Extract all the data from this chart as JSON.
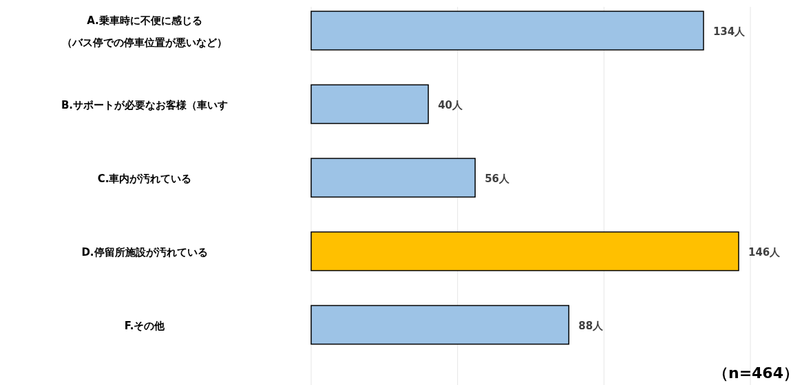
{
  "chart_data": {
    "type": "bar",
    "orientation": "horizontal",
    "categories": [
      "A.乗車時に不便に感じる（バス停での停車位置が悪いなど）",
      "B.サポートが必要なお客様（車いす",
      "C.車内が汚れている",
      "D.停留所施設が汚れている",
      "F.その他"
    ],
    "values": [
      134,
      40,
      56,
      146,
      88
    ],
    "colors": [
      "#9dc3e6",
      "#9dc3e6",
      "#9dc3e6",
      "#ffc000",
      "#9dc3e6"
    ],
    "value_labels": [
      "134人",
      "40人",
      "56人",
      "146人",
      "88人"
    ],
    "xlim": [
      0,
      150
    ],
    "xticks": [
      {
        "value": 0,
        "label": null
      },
      {
        "value": 50,
        "label": null
      },
      {
        "value": 100,
        "label": null
      },
      {
        "value": 150,
        "label": null
      }
    ],
    "grid": "x",
    "annotations": [
      "（n=464）"
    ]
  }
}
